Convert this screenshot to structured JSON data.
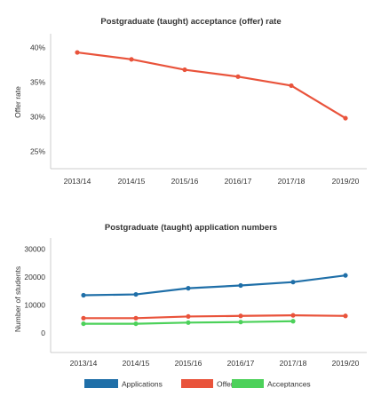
{
  "chart_data": [
    {
      "type": "line",
      "title": "Postgraduate (taught) acceptance (offer) rate",
      "ylabel": "Offer rate",
      "categories": [
        "2013/14",
        "2014/15",
        "2015/16",
        "2016/17",
        "2017/18",
        "2019/20"
      ],
      "yticks": [
        "40%",
        "35%",
        "30%",
        "25%"
      ],
      "ylim": [
        22.5,
        42
      ],
      "series": [
        {
          "color": "#e9533b",
          "values": [
            39.3,
            38.3,
            36.8,
            35.8,
            34.5,
            29.8
          ]
        }
      ],
      "grid": false
    },
    {
      "type": "line",
      "title": "Postgraduate (taught) application numbers",
      "ylabel": "Number of students",
      "categories": [
        "2013/14",
        "2014/15",
        "2015/16",
        "2016/17",
        "2017/18",
        "2019/20"
      ],
      "yticks": [
        "30000",
        "20000",
        "10000",
        "0"
      ],
      "ylim": [
        -7000,
        34000
      ],
      "series": [
        {
          "name": "Applications",
          "color": "#1f6fa8",
          "values": [
            13500,
            13800,
            16000,
            17000,
            18200,
            20600
          ]
        },
        {
          "name": "Offers",
          "color": "#e9533b",
          "values": [
            5300,
            5300,
            5900,
            6100,
            6300,
            6100
          ]
        },
        {
          "name": "Acceptances",
          "color": "#4cd15a",
          "values": [
            3300,
            3300,
            3700,
            3900,
            4200,
            null
          ]
        }
      ],
      "legend": "bottom",
      "grid": false
    }
  ]
}
